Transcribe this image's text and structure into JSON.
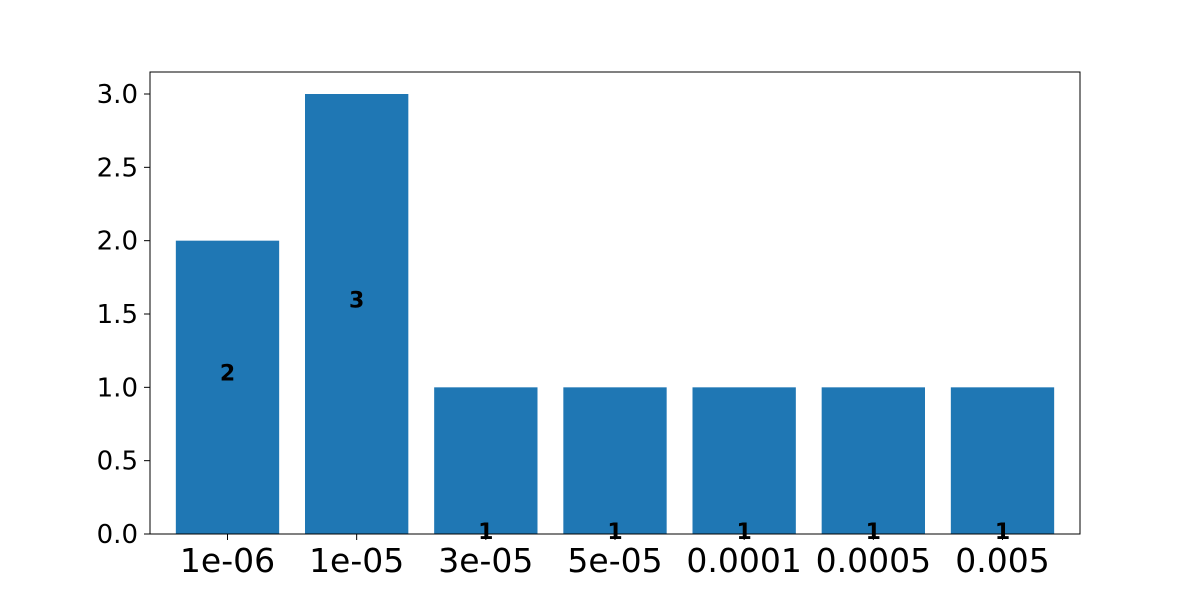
{
  "chart_data": {
    "type": "bar",
    "title": "",
    "xlabel": "",
    "ylabel": "",
    "categories": [
      "1e-06",
      "1e-05",
      "3e-05",
      "5e-05",
      "0.0001",
      "0.0005",
      "0.005"
    ],
    "values": [
      2,
      3,
      1,
      1,
      1,
      1,
      1
    ],
    "data_labels": [
      "2",
      "3",
      "1",
      "1",
      "1",
      "1",
      "1"
    ],
    "ylim": [
      0,
      3.15
    ],
    "yticks": [
      "0.0",
      "0.5",
      "1.0",
      "1.5",
      "2.0",
      "2.5",
      "3.0"
    ],
    "ytick_values": [
      0,
      0.5,
      1,
      1.5,
      2,
      2.5,
      3
    ],
    "grid": false,
    "bar_color": "#1f77b4"
  }
}
